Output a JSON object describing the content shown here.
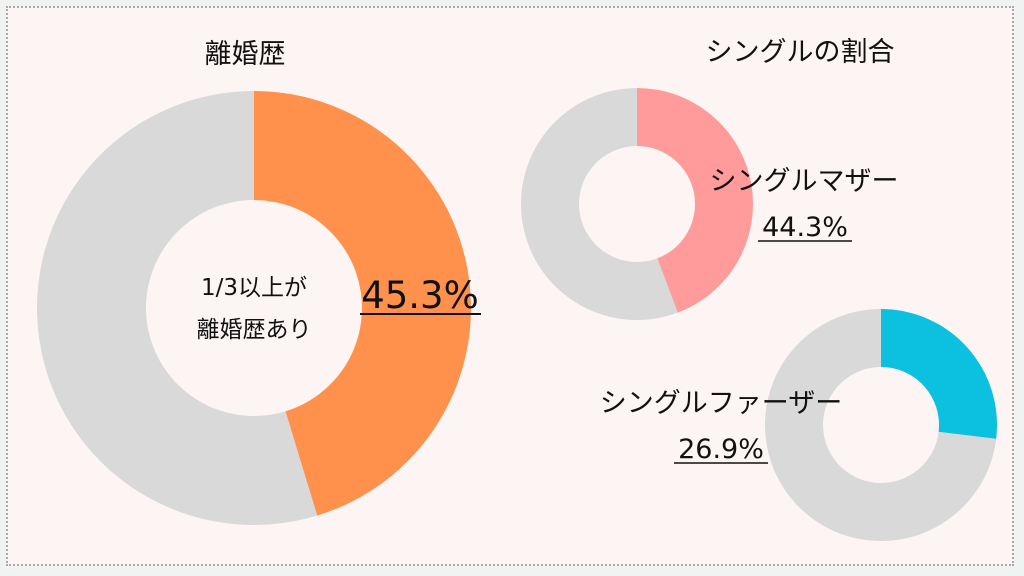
{
  "colors": {
    "page_background": "#f1f2f2",
    "panel_background": "#fdf5f3",
    "remainder": "#d9d9d9",
    "divorce": "#ff914d",
    "single_mother": "#ff9b9a",
    "single_father": "#0cc0df",
    "text": "#111111"
  },
  "chart_data": [
    {
      "type": "pie",
      "style": "donut",
      "title": "離婚歴",
      "center_text": [
        "1/3以上が",
        "離婚歴あり"
      ],
      "slices": [
        {
          "label": "離婚歴あり",
          "value": 45.3,
          "color": "#ff914d"
        },
        {
          "label": "",
          "value": 54.7,
          "color": "#d9d9d9"
        }
      ],
      "value_label": "45.3%"
    },
    {
      "type": "pie",
      "style": "donut",
      "group_title": "シングルの割合",
      "label": "シングルマザー",
      "slices": [
        {
          "label": "シングルマザー",
          "value": 44.3,
          "color": "#ff9b9a"
        },
        {
          "label": "",
          "value": 55.7,
          "color": "#d9d9d9"
        }
      ],
      "value_label": "44.3%"
    },
    {
      "type": "pie",
      "style": "donut",
      "label": "シングルファーザー",
      "slices": [
        {
          "label": "シングルファーザー",
          "value": 26.9,
          "color": "#0cc0df"
        },
        {
          "label": "",
          "value": 73.1,
          "color": "#d9d9d9"
        }
      ],
      "value_label": "26.9%"
    }
  ]
}
